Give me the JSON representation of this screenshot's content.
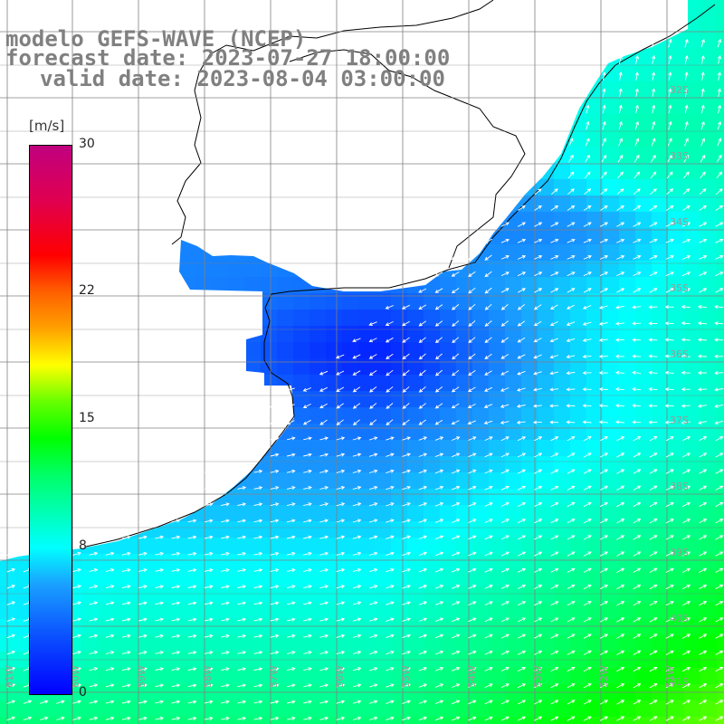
{
  "title": {
    "line1": "modelo GEFS-WAVE (NCEP)",
    "line2": "forecast date: 2023-07-27 18:00:00",
    "line3": "valid date: 2023-08-04 03:00:00"
  },
  "colorbar": {
    "unit": "[m/s]",
    "ticks": [
      "30",
      "22",
      "15",
      "8",
      "0"
    ],
    "tick_values": [
      30,
      22,
      15,
      8,
      0
    ],
    "vmin": 0,
    "vmax": 30,
    "colors": [
      "#0000ff",
      "#1aa0ff",
      "#00ffff",
      "#00ff00",
      "#ffff00",
      "#ff0000",
      "#c0007f"
    ]
  },
  "map": {
    "variable": "wind speed",
    "land_color": "#ffffff",
    "coast_color": "#000000",
    "grid_color": "#808080",
    "arrow_color": "#ffffff",
    "lat_labels": [
      "32S",
      "33S",
      "34S",
      "35S",
      "36S",
      "37S",
      "38S",
      "39S",
      "40S",
      "41S"
    ],
    "lon_labels": [
      "61W",
      "60W",
      "59W",
      "58W",
      "57W",
      "56W",
      "55W",
      "54W",
      "53W",
      "52W",
      "51W"
    ]
  }
}
